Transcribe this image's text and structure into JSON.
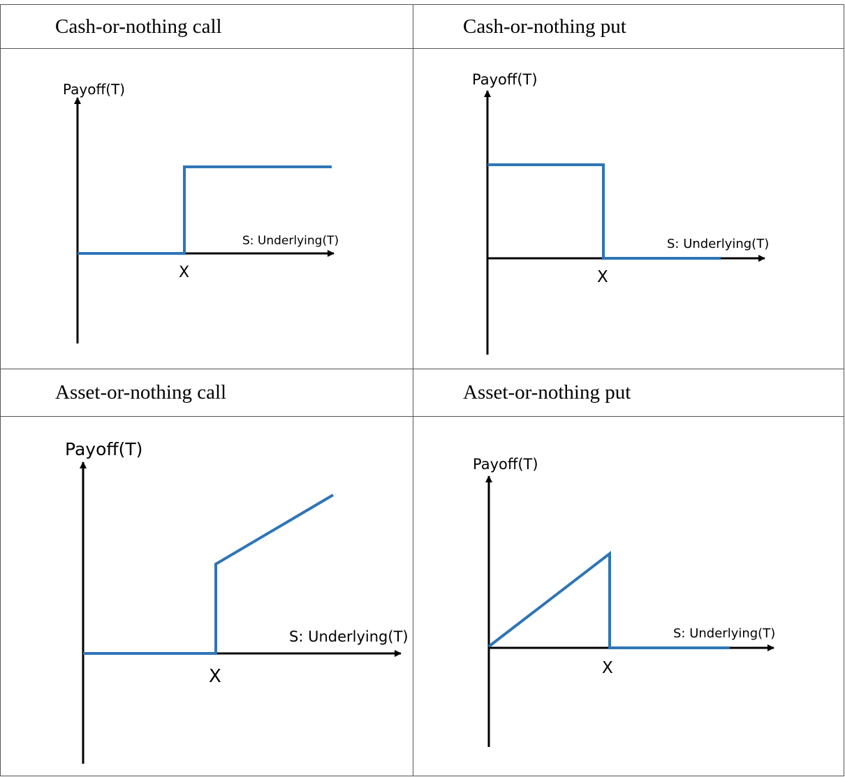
{
  "colors": {
    "payoff_line": "#2e75b6",
    "axis": "#000000",
    "table_border": "#555555"
  },
  "cells": [
    {
      "caption": "Cash-or-nothing call",
      "y_label": "Payoff(T)",
      "x_label": "S: Underlying(T)",
      "strike_label": "X"
    },
    {
      "caption": "Cash-or-nothing put",
      "y_label": "Payoff(T)",
      "x_label": "S: Underlying(T)",
      "strike_label": "X"
    },
    {
      "caption": "Asset-or-nothing call",
      "y_label": "Payoff(T)",
      "x_label": "S: Underlying(T)",
      "strike_label": "X"
    },
    {
      "caption": "Asset-or-nothing put",
      "y_label": "Payoff(T)",
      "x_label": "S: Underlying(T)",
      "strike_label": "X"
    }
  ]
}
